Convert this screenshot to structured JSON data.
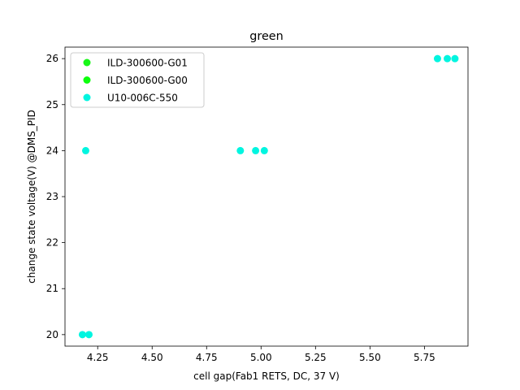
{
  "chart_data": {
    "type": "scatter",
    "title": "green",
    "xlabel": "cell gap(Fab1 RETS, DC, 37 V)",
    "ylabel": "change state voltage(V) @DMS_PID",
    "xlim": [
      4.1,
      5.95
    ],
    "ylim": [
      19.75,
      26.25
    ],
    "xticks": [
      "4.25",
      "4.50",
      "4.75",
      "5.00",
      "5.25",
      "5.50",
      "5.75"
    ],
    "yticks": [
      "20",
      "21",
      "22",
      "23",
      "24",
      "25",
      "26"
    ],
    "legend_position": "upper-left",
    "grid": false,
    "series": [
      {
        "name": "ILD-300600-G01",
        "color": "#19f719",
        "points": []
      },
      {
        "name": "ILD-300600-G00",
        "color": "#0cff0c",
        "points": []
      },
      {
        "name": "U10-006C-550",
        "color": "#00f5e0",
        "points": [
          [
            4.18,
            20
          ],
          [
            4.21,
            20
          ],
          [
            4.195,
            24
          ],
          [
            4.905,
            24
          ],
          [
            4.975,
            24
          ],
          [
            5.015,
            24
          ],
          [
            5.81,
            26
          ],
          [
            5.855,
            26
          ],
          [
            5.89,
            26
          ]
        ]
      }
    ]
  }
}
